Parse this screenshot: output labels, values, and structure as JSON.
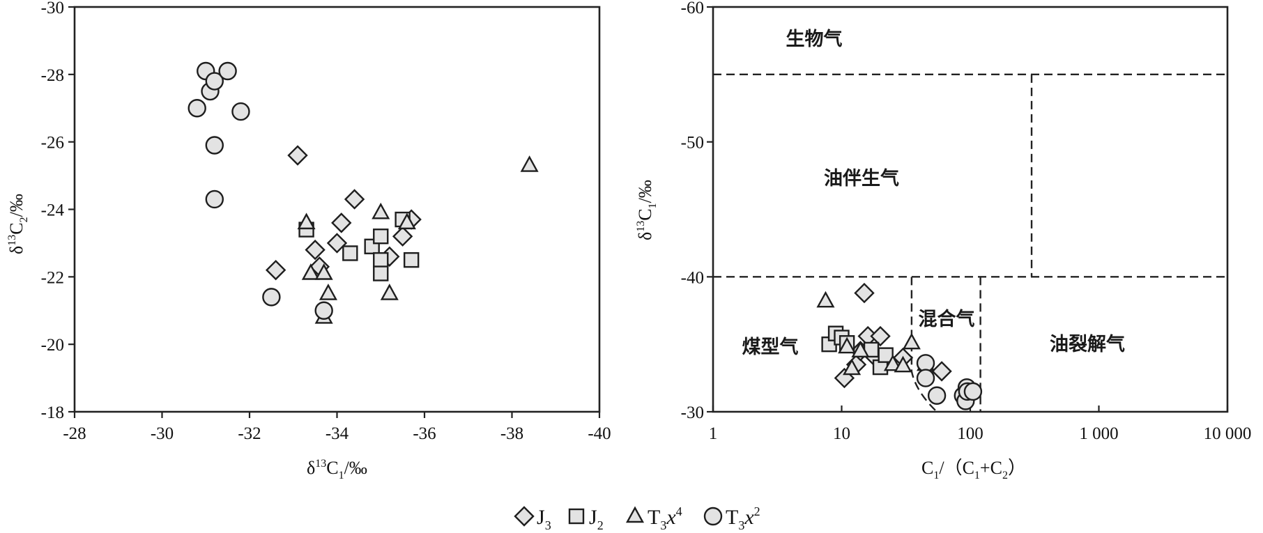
{
  "legend": [
    {
      "marker": "diamond",
      "base": "J",
      "sub": "3",
      "sup": "",
      "tail": ""
    },
    {
      "marker": "square",
      "base": "J",
      "sub": "2",
      "sup": "",
      "tail": ""
    },
    {
      "marker": "triangle",
      "base": "T",
      "sub": "3",
      "sup": "4",
      "tail": "x"
    },
    {
      "marker": "circle",
      "base": "T",
      "sub": "3",
      "sup": "2",
      "tail": "x"
    }
  ],
  "chart_data": [
    {
      "type": "scatter",
      "xlabel": {
        "pre": "δ",
        "sup": "13",
        "mid": "C",
        "sub": "1",
        "post": "/‰"
      },
      "ylabel": {
        "pre": "δ",
        "sup": "13",
        "mid": "C",
        "sub": "2",
        "post": "/‰"
      },
      "xlim": [
        -28,
        -40
      ],
      "ylim": [
        -18,
        -30
      ],
      "xticks": [
        "-28",
        "-30",
        "-32",
        "-34",
        "-36",
        "-38",
        "-40"
      ],
      "yticks": [
        "-18",
        "-20",
        "-22",
        "-24",
        "-26",
        "-28",
        "-30"
      ],
      "series": [
        {
          "marker": "diamond",
          "points": [
            [
              -33.1,
              -25.6
            ],
            [
              -32.6,
              -22.2
            ],
            [
              -33.5,
              -22.8
            ],
            [
              -33.6,
              -22.3
            ],
            [
              -34.0,
              -23.0
            ],
            [
              -34.1,
              -23.6
            ],
            [
              -34.4,
              -24.3
            ],
            [
              -35.2,
              -22.6
            ],
            [
              -35.5,
              -23.2
            ],
            [
              -35.7,
              -23.7
            ]
          ]
        },
        {
          "marker": "square",
          "points": [
            [
              -33.3,
              -23.4
            ],
            [
              -34.3,
              -22.7
            ],
            [
              -34.8,
              -22.9
            ],
            [
              -35.0,
              -23.2
            ],
            [
              -35.0,
              -22.5
            ],
            [
              -35.0,
              -22.1
            ],
            [
              -35.5,
              -23.7
            ],
            [
              -35.7,
              -22.5
            ]
          ]
        },
        {
          "marker": "triangle",
          "points": [
            [
              -33.3,
              -23.6
            ],
            [
              -33.4,
              -22.1
            ],
            [
              -33.7,
              -22.1
            ],
            [
              -33.8,
              -21.5
            ],
            [
              -33.7,
              -20.8
            ],
            [
              -35.0,
              -23.9
            ],
            [
              -35.2,
              -21.5
            ],
            [
              -35.6,
              -23.6
            ],
            [
              -38.4,
              -25.3
            ]
          ]
        },
        {
          "marker": "circle",
          "points": [
            [
              -30.8,
              -27.0
            ],
            [
              -31.0,
              -28.1
            ],
            [
              -31.1,
              -27.5
            ],
            [
              -31.2,
              -27.8
            ],
            [
              -31.5,
              -28.1
            ],
            [
              -31.8,
              -26.9
            ],
            [
              -31.2,
              -25.9
            ],
            [
              -31.2,
              -24.3
            ],
            [
              -32.5,
              -21.4
            ],
            [
              -33.7,
              -21.0
            ]
          ]
        }
      ]
    },
    {
      "type": "scatter",
      "xscale": "log",
      "xlabel": {
        "text": "C1/(C1+C2)",
        "a": "C",
        "a_sub": "1",
        "b": "/（C",
        "b_sub": "1",
        "c": "+C",
        "c_sub": "2",
        "d": "）"
      },
      "ylabel": {
        "pre": "δ",
        "sup": "13",
        "mid": "C",
        "sub": "1",
        "post": "/‰"
      },
      "xlim": [
        1,
        10000
      ],
      "ylim": [
        -30,
        -60
      ],
      "xticks": [
        "1",
        "10",
        "100",
        "1 000",
        "10 000"
      ],
      "yticks": [
        "-30",
        "-40",
        "-50",
        "-60"
      ],
      "regions": [
        "生物气",
        "油伴生气",
        "煤型气",
        "混合气",
        "油裂解气"
      ],
      "series": [
        {
          "marker": "diamond",
          "points": [
            [
              10.5,
              -32.5
            ],
            [
              13,
              -33.5
            ],
            [
              14,
              -34.5
            ],
            [
              15,
              -38.8
            ],
            [
              16,
              -35.6
            ],
            [
              18,
              -34.1
            ],
            [
              20,
              -35.6
            ],
            [
              30,
              -34
            ],
            [
              60,
              -33
            ]
          ]
        },
        {
          "marker": "square",
          "points": [
            [
              8,
              -35
            ],
            [
              9,
              -35.8
            ],
            [
              10,
              -35.5
            ],
            [
              11,
              -35.1
            ],
            [
              17,
              -34.6
            ],
            [
              20,
              -33.3
            ],
            [
              22,
              -34.2
            ]
          ]
        },
        {
          "marker": "triangle",
          "points": [
            [
              7.5,
              -38.2
            ],
            [
              11,
              -34.8
            ],
            [
              12,
              -33.2
            ],
            [
              14,
              -34.5
            ],
            [
              25,
              -33.5
            ],
            [
              30,
              -33.4
            ],
            [
              35,
              -35.1
            ],
            [
              45,
              -33.5
            ]
          ]
        },
        {
          "marker": "circle",
          "points": [
            [
              45,
              -33.6
            ],
            [
              45,
              -32.5
            ],
            [
              55,
              -31.2
            ],
            [
              88,
              -31.2
            ],
            [
              92,
              -30.8
            ],
            [
              94,
              -31.8
            ],
            [
              95,
              -31.5
            ],
            [
              105,
              -31.5
            ]
          ]
        }
      ]
    }
  ]
}
